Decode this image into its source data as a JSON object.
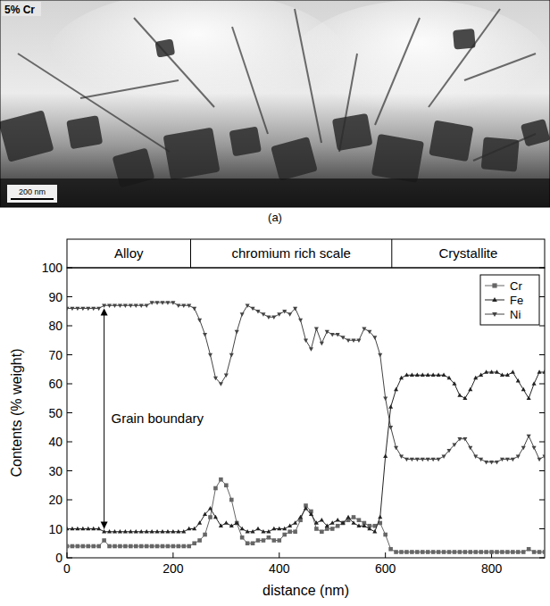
{
  "figure": {
    "image_label": "5% Cr",
    "scale_bar": "200 nm",
    "caption": "(a)"
  },
  "chart_data": {
    "type": "line",
    "x_label": "distance (nm)",
    "y_label": "Contents (% weight)",
    "xlim": [
      0,
      900
    ],
    "ylim": [
      0,
      100
    ],
    "xticks": [
      0,
      200,
      400,
      600,
      800
    ],
    "yticks": [
      0,
      10,
      20,
      30,
      40,
      50,
      60,
      70,
      80,
      90,
      100
    ],
    "legend": "upper right",
    "regions": [
      {
        "label": "Alloy",
        "from": 0,
        "to": 233
      },
      {
        "label": "chromium rich scale",
        "from": 233,
        "to": 612
      },
      {
        "label": "Crystallite",
        "from": 612,
        "to": 900
      }
    ],
    "annotations": [
      {
        "text": "Grain boundary",
        "x": 70,
        "y_from": 10,
        "y_to": 86
      }
    ],
    "x": [
      0,
      10,
      20,
      30,
      40,
      50,
      60,
      70,
      80,
      90,
      100,
      110,
      120,
      130,
      140,
      150,
      160,
      170,
      180,
      190,
      200,
      210,
      220,
      230,
      240,
      250,
      260,
      270,
      280,
      290,
      300,
      310,
      320,
      330,
      340,
      350,
      360,
      370,
      380,
      390,
      400,
      410,
      420,
      430,
      440,
      450,
      460,
      470,
      480,
      490,
      500,
      510,
      520,
      530,
      540,
      550,
      560,
      570,
      580,
      590,
      600,
      610,
      620,
      630,
      640,
      650,
      660,
      670,
      680,
      690,
      700,
      710,
      720,
      730,
      740,
      750,
      760,
      770,
      780,
      790,
      800,
      810,
      820,
      830,
      840,
      850,
      860,
      870,
      880,
      890,
      900
    ],
    "series": [
      {
        "name": "Cr",
        "color": "#666666",
        "marker": "square",
        "values": [
          4,
          4,
          4,
          4,
          4,
          4,
          4,
          6,
          4,
          4,
          4,
          4,
          4,
          4,
          4,
          4,
          4,
          4,
          4,
          4,
          4,
          4,
          4,
          4,
          5,
          6,
          8,
          14,
          24,
          27,
          25,
          20,
          12,
          7,
          5,
          5,
          6,
          6,
          7,
          6,
          6,
          8,
          9,
          9,
          13,
          18,
          16,
          10,
          9,
          10,
          10,
          11,
          12,
          13,
          14,
          13,
          12,
          11,
          11,
          12,
          8,
          3,
          2,
          2,
          2,
          2,
          2,
          2,
          2,
          2,
          2,
          2,
          2,
          2,
          2,
          2,
          2,
          2,
          2,
          2,
          2,
          2,
          2,
          2,
          2,
          2,
          2,
          3,
          2,
          2,
          2
        ]
      },
      {
        "name": "Fe",
        "color": "#222222",
        "marker": "triangle-up",
        "values": [
          10,
          10,
          10,
          10,
          10,
          10,
          10,
          9,
          9,
          9,
          9,
          9,
          9,
          9,
          9,
          9,
          9,
          9,
          9,
          9,
          9,
          9,
          9,
          10,
          10,
          12,
          15,
          17,
          14,
          11,
          12,
          11,
          12,
          10,
          9,
          9,
          10,
          9,
          9,
          10,
          10,
          10,
          11,
          12,
          14,
          17,
          15,
          12,
          13,
          11,
          12,
          13,
          12,
          14,
          12,
          11,
          11,
          10,
          9,
          14,
          35,
          52,
          58,
          62,
          63,
          63,
          63,
          63,
          63,
          63,
          63,
          63,
          62,
          60,
          56,
          55,
          58,
          62,
          63,
          64,
          64,
          64,
          63,
          63,
          64,
          61,
          58,
          55,
          60,
          64,
          64
        ]
      },
      {
        "name": "Ni",
        "color": "#444444",
        "marker": "triangle-down",
        "values": [
          86,
          86,
          86,
          86,
          86,
          86,
          86,
          87,
          87,
          87,
          87,
          87,
          87,
          87,
          87,
          87,
          88,
          88,
          88,
          88,
          88,
          87,
          87,
          87,
          86,
          82,
          77,
          70,
          62,
          60,
          63,
          70,
          78,
          84,
          87,
          86,
          85,
          84,
          83,
          83,
          84,
          85,
          84,
          86,
          82,
          75,
          72,
          79,
          74,
          78,
          77,
          77,
          76,
          75,
          75,
          75,
          79,
          78,
          76,
          70,
          55,
          45,
          38,
          35,
          34,
          34,
          34,
          34,
          34,
          34,
          34,
          35,
          37,
          39,
          41,
          41,
          38,
          35,
          34,
          33,
          33,
          33,
          34,
          34,
          34,
          35,
          38,
          42,
          38,
          34,
          35
        ]
      }
    ]
  }
}
